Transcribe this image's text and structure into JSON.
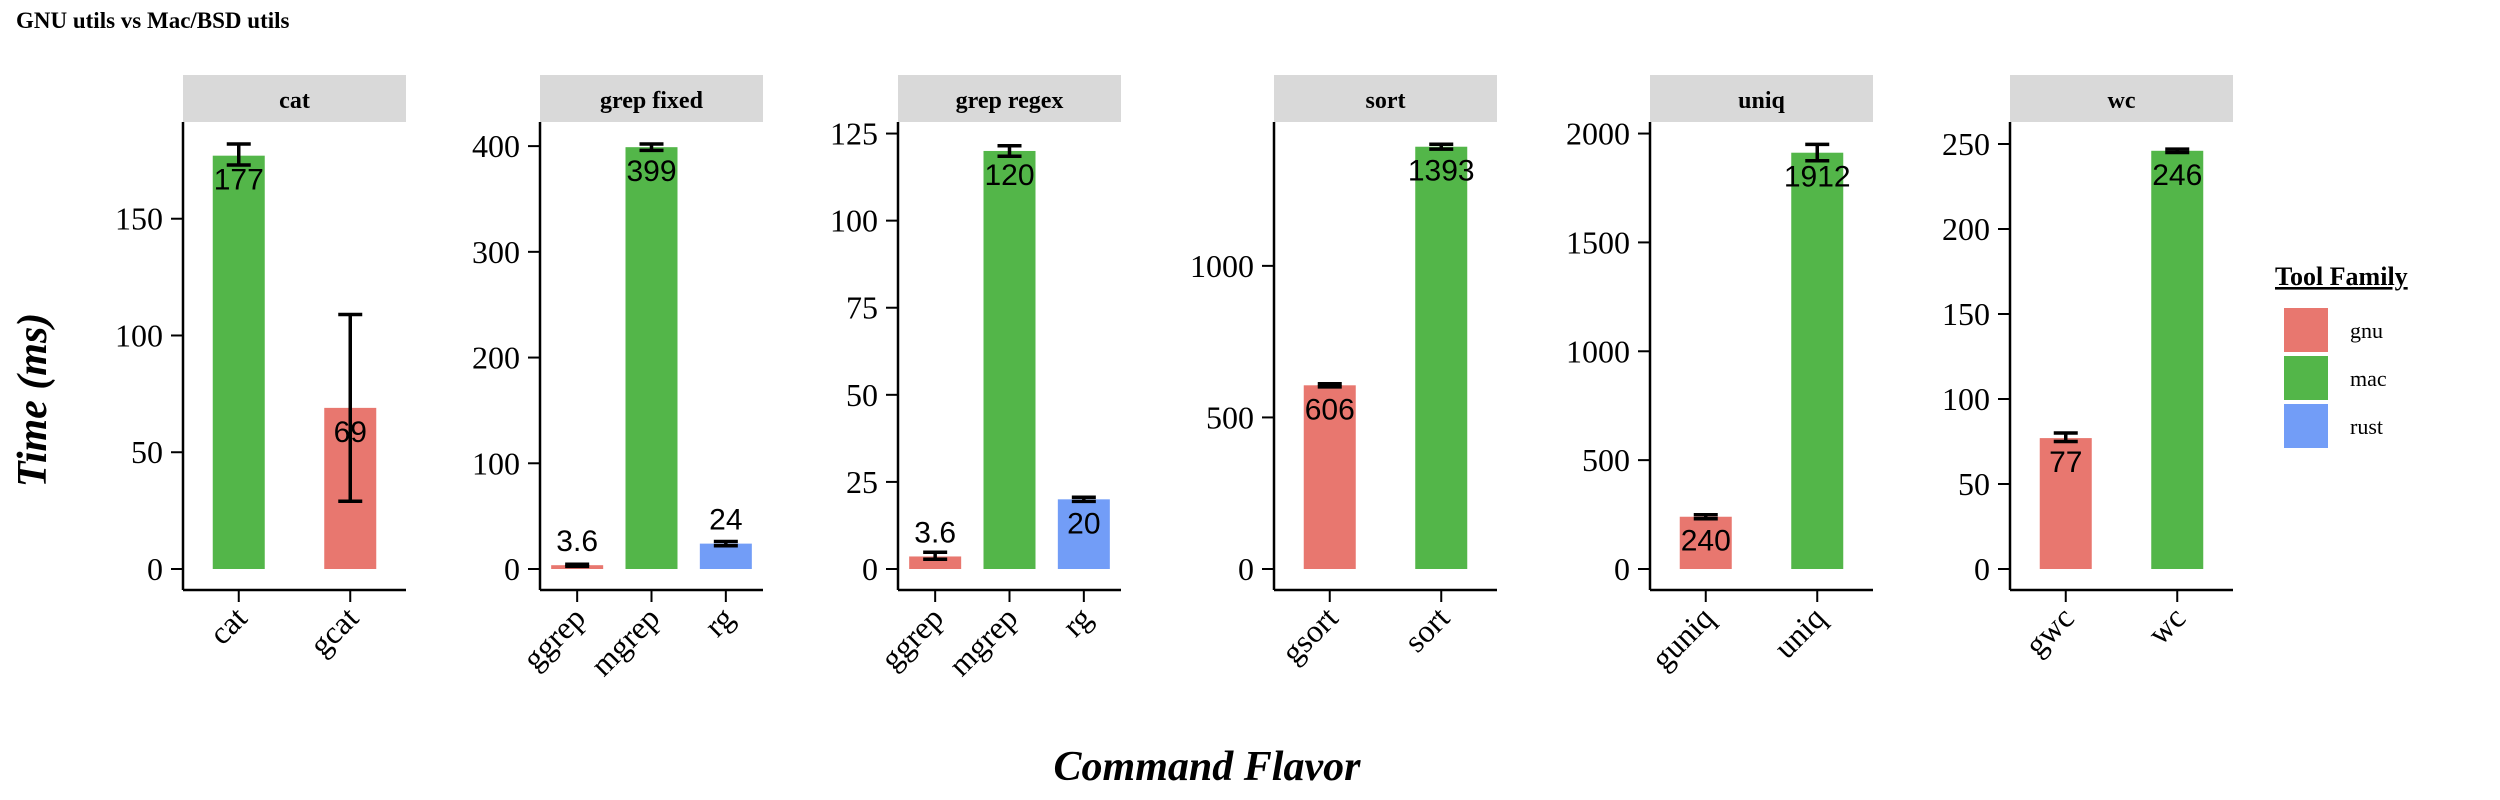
{
  "title": "GNU utils vs Mac/BSD utils",
  "xlabel": "Command Flavor",
  "ylabel": "Time (ms)",
  "legend": {
    "title": "Tool Family",
    "position": "right",
    "items": [
      {
        "key": "gnu",
        "label": "gnu",
        "color": "#E8776F"
      },
      {
        "key": "mac",
        "label": "mac",
        "color": "#53B649"
      },
      {
        "key": "rust",
        "label": "rust",
        "color": "#729DF7"
      }
    ]
  },
  "chart_data": [
    {
      "type": "bar",
      "facet": "cat",
      "categories": [
        "cat",
        "gcat"
      ],
      "family": [
        "mac",
        "gnu"
      ],
      "values": [
        177,
        69
      ],
      "labels": [
        "177",
        "69"
      ],
      "error": [
        [
          173,
          182
        ],
        [
          29,
          109
        ]
      ],
      "ylim": [
        0,
        182
      ],
      "yticks": [
        0,
        50,
        100,
        150
      ]
    },
    {
      "type": "bar",
      "facet": "grep fixed",
      "categories": [
        "ggrep",
        "mgrep",
        "rg"
      ],
      "family": [
        "gnu",
        "mac",
        "rust"
      ],
      "values": [
        3.6,
        399,
        24
      ],
      "labels": [
        "3.6",
        "399",
        "24"
      ],
      "error": [
        [
          2.5,
          4.5
        ],
        [
          396,
          402
        ],
        [
          22,
          26
        ]
      ],
      "ylim": [
        0,
        402
      ],
      "yticks": [
        0,
        100,
        200,
        300,
        400
      ]
    },
    {
      "type": "bar",
      "facet": "grep regex",
      "categories": [
        "ggrep",
        "mgrep",
        "rg"
      ],
      "family": [
        "gnu",
        "mac",
        "rust"
      ],
      "values": [
        3.6,
        120,
        20
      ],
      "labels": [
        "3.6",
        "120",
        "20"
      ],
      "error": [
        [
          2.8,
          4.8
        ],
        [
          118.5,
          121.5
        ],
        [
          19.4,
          20.6
        ]
      ],
      "ylim": [
        0,
        122
      ],
      "yticks": [
        0,
        25,
        50,
        75,
        100,
        125
      ]
    },
    {
      "type": "bar",
      "facet": "sort",
      "categories": [
        "gsort",
        "sort"
      ],
      "family": [
        "gnu",
        "mac"
      ],
      "values": [
        606,
        1393
      ],
      "labels": [
        "606",
        "1393"
      ],
      "error": [
        [
          601,
          611
        ],
        [
          1385,
          1401
        ]
      ],
      "ylim": [
        0,
        1402
      ],
      "yticks": [
        0,
        500,
        1000
      ]
    },
    {
      "type": "bar",
      "facet": "uniq",
      "categories": [
        "guniq",
        "uniq"
      ],
      "family": [
        "gnu",
        "mac"
      ],
      "values": [
        240,
        1912
      ],
      "labels": [
        "240",
        "1912"
      ],
      "error": [
        [
          231,
          249
        ],
        [
          1875,
          1950
        ]
      ],
      "ylim": [
        0,
        1952
      ],
      "yticks": [
        0,
        500,
        1000,
        1500,
        2000
      ]
    },
    {
      "type": "bar",
      "facet": "wc",
      "categories": [
        "gwc",
        "wc"
      ],
      "family": [
        "gnu",
        "mac"
      ],
      "values": [
        77,
        246
      ],
      "labels": [
        "77",
        "246"
      ],
      "error": [
        [
          75,
          80
        ],
        [
          245,
          247
        ]
      ],
      "ylim": [
        0,
        250
      ],
      "yticks": [
        0,
        50,
        100,
        150,
        200,
        250
      ]
    }
  ]
}
